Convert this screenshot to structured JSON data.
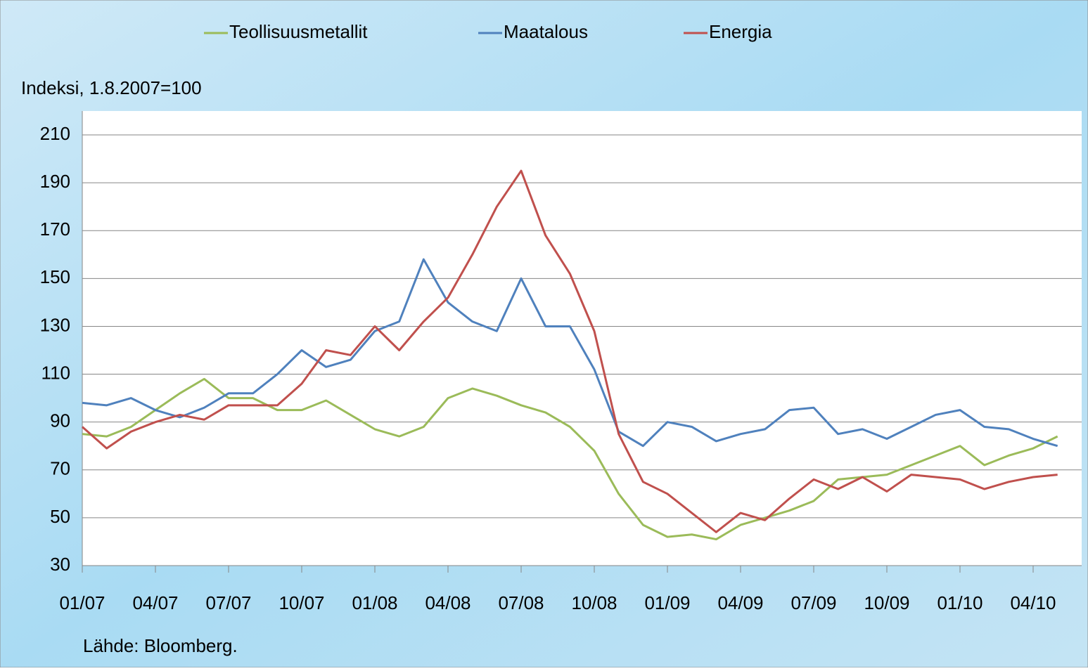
{
  "chart_data": {
    "type": "line",
    "legend_position": "top",
    "y_label": "Indeksi, 1.8.2007=100",
    "source": "Lähde: Bloomberg.",
    "grid": true,
    "categories": [
      "01/07",
      null,
      null,
      "04/07",
      null,
      null,
      "07/07",
      null,
      null,
      "10/07",
      null,
      null,
      "01/08",
      null,
      null,
      "04/08",
      null,
      null,
      "07/08",
      null,
      null,
      "10/08",
      null,
      null,
      "01/09",
      null,
      null,
      "04/09",
      null,
      null,
      "07/09",
      null,
      null,
      "10/09",
      null,
      null,
      "01/10",
      null,
      null,
      "04/10",
      null
    ],
    "ylim": [
      30,
      210
    ],
    "yticks": [
      30,
      50,
      70,
      90,
      110,
      130,
      150,
      170,
      190,
      210
    ],
    "series": [
      {
        "name": "Teollisuusmetallit",
        "color": "#9bbb59",
        "values": [
          85,
          84,
          88,
          95,
          102,
          108,
          100,
          100,
          95,
          95,
          99,
          93,
          87,
          84,
          88,
          100,
          104,
          101,
          97,
          94,
          88,
          78,
          60,
          47,
          42,
          43,
          41,
          47,
          50,
          53,
          57,
          66,
          67,
          68,
          72,
          76,
          80,
          72,
          76,
          79,
          84
        ]
      },
      {
        "name": "Maatalous",
        "color": "#4f81bd",
        "values": [
          98,
          97,
          100,
          95,
          92,
          96,
          102,
          102,
          110,
          120,
          113,
          116,
          128,
          132,
          158,
          140,
          132,
          128,
          150,
          130,
          130,
          112,
          86,
          80,
          90,
          88,
          82,
          85,
          87,
          95,
          96,
          85,
          87,
          83,
          88,
          93,
          95,
          88,
          87,
          83,
          80
        ]
      },
      {
        "name": "Energia",
        "color": "#c0504d",
        "values": [
          88,
          79,
          86,
          90,
          93,
          91,
          97,
          97,
          97,
          106,
          120,
          118,
          130,
          120,
          132,
          142,
          160,
          180,
          195,
          168,
          152,
          128,
          85,
          65,
          60,
          52,
          44,
          52,
          49,
          58,
          66,
          62,
          67,
          61,
          68,
          67,
          66,
          62,
          65,
          67,
          68
        ]
      }
    ]
  }
}
